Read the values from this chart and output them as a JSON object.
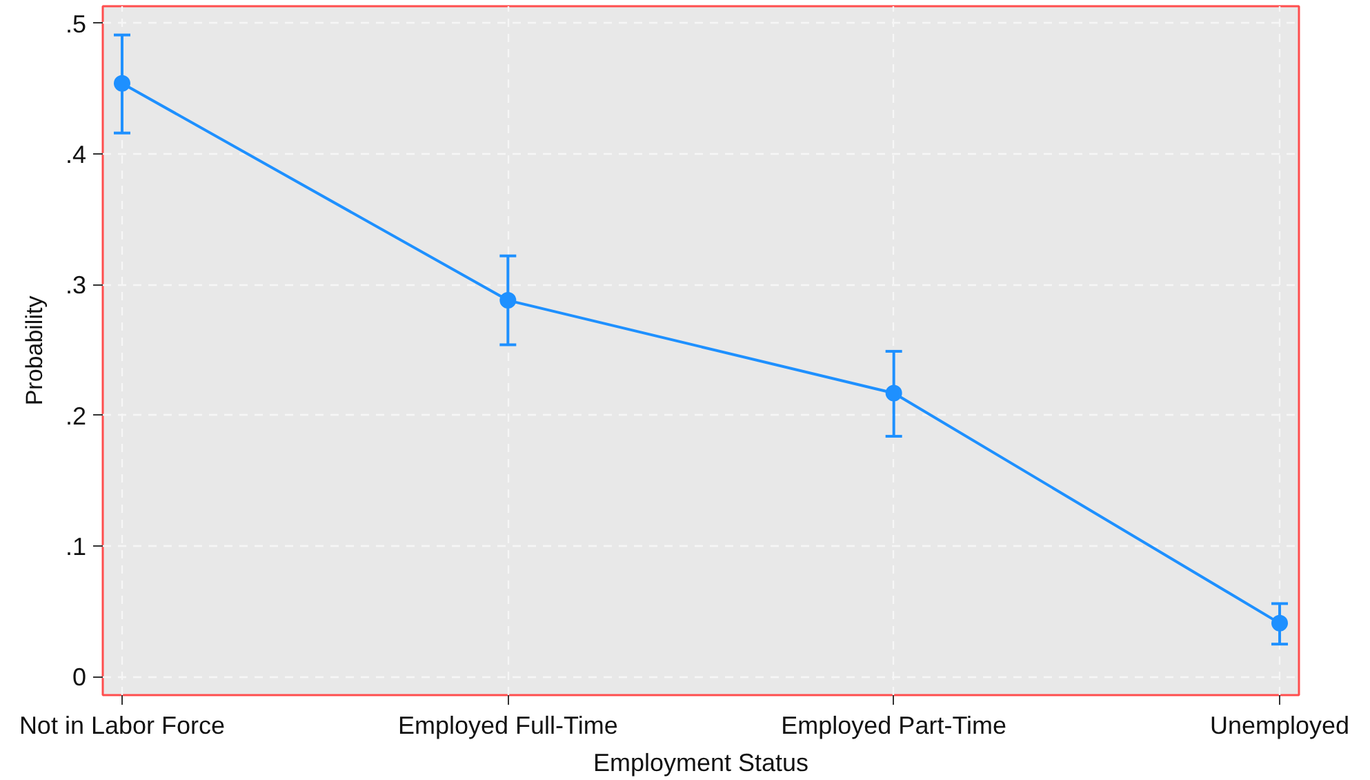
{
  "chart_data": {
    "type": "line",
    "xlabel": "Employment Status",
    "ylabel": "Probability",
    "categories": [
      "Not in Labor Force",
      "Employed Full-Time",
      "Employed Part-Time",
      "Unemployed"
    ],
    "series": [
      {
        "color": "#1e90ff",
        "values": [
          0.454,
          0.288,
          0.217,
          0.041
        ],
        "errors": [
          [
            0.416,
            0.491
          ],
          [
            0.254,
            0.322
          ],
          [
            0.184,
            0.249
          ],
          [
            0.025,
            0.056
          ]
        ]
      }
    ],
    "ylim": [
      -0.014,
      0.513
    ],
    "yticks": [
      0,
      {
        "value": 0.1,
        "label": ".1"
      },
      {
        "value": 0.2,
        "label": ".2"
      },
      {
        "value": 0.3,
        "label": ".3"
      },
      {
        "value": 0.4,
        "label": ".4"
      },
      {
        "value": 0.5,
        "label": ".5"
      }
    ],
    "grid": true,
    "marker": "circle",
    "line_style": "solid"
  }
}
